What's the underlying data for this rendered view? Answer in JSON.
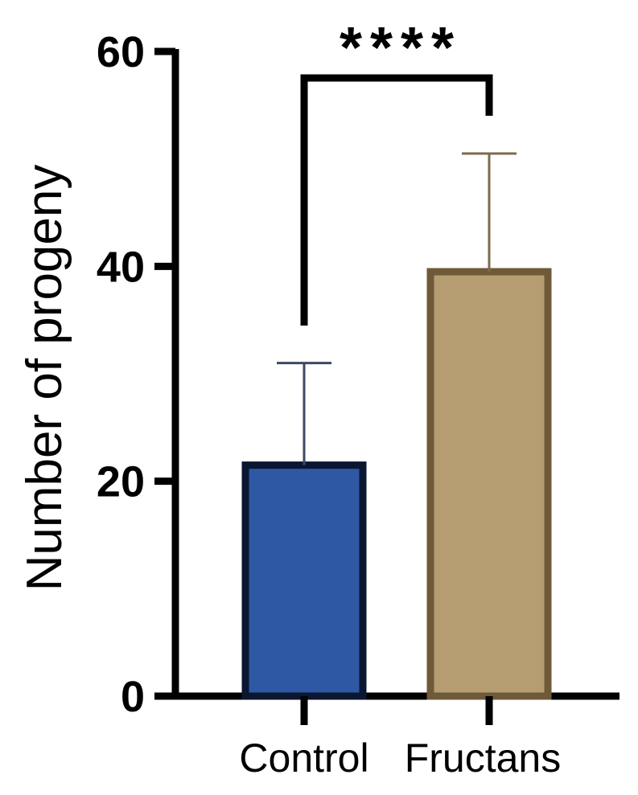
{
  "chart_data": {
    "type": "bar",
    "categories": [
      "Control",
      "Fructans"
    ],
    "values": [
      21.5,
      39.5
    ],
    "error_upper": [
      31,
      50.5
    ],
    "ylabel": "Number of progeny",
    "xlabel": "",
    "ylim": [
      0,
      60
    ],
    "yticks": [
      0,
      20,
      40,
      60
    ],
    "grid": false,
    "legend": "none",
    "significance": {
      "label": "****",
      "between": [
        "Control",
        "Fructans"
      ]
    },
    "colors": {
      "fill": [
        "#2e58a3",
        "#b59d71"
      ],
      "edge": [
        "#0b1630",
        "#6e5a38"
      ],
      "error": [
        "#3b4a63",
        "#7d6b4d"
      ]
    }
  }
}
